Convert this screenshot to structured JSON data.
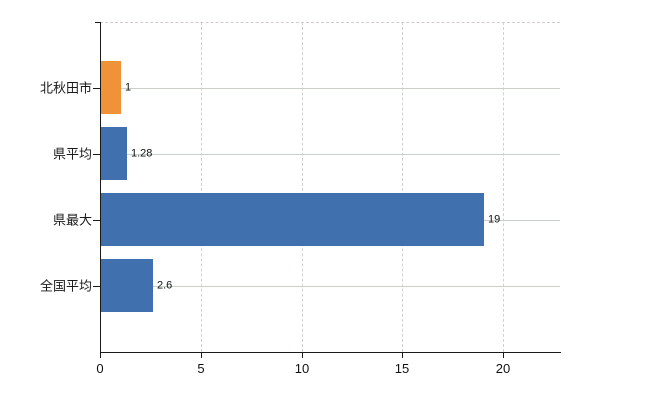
{
  "chart_data": {
    "type": "bar",
    "orientation": "horizontal",
    "title": "",
    "categories": [
      "北秋田市",
      "県平均",
      "県最大",
      "全国平均"
    ],
    "values": [
      1,
      1.28,
      19,
      2.6
    ],
    "value_labels": [
      "1",
      "1.28",
      "19",
      "2.6"
    ],
    "bar_colors": [
      "#f09238",
      "#4070ae",
      "#4070ae",
      "#4070ae"
    ],
    "highlight_color": "#f09238",
    "default_color": "#4070ae",
    "x_ticks": [
      0,
      5,
      10,
      15,
      20
    ],
    "x_tick_labels": [
      "0",
      "5",
      "10",
      "15",
      "20"
    ],
    "xlim": [
      0,
      22.8
    ],
    "grid": true,
    "legend_position": "none",
    "axis_color": "#1a1a1a",
    "gridline_color": "#cccccc",
    "background_color": "#ffffff"
  }
}
